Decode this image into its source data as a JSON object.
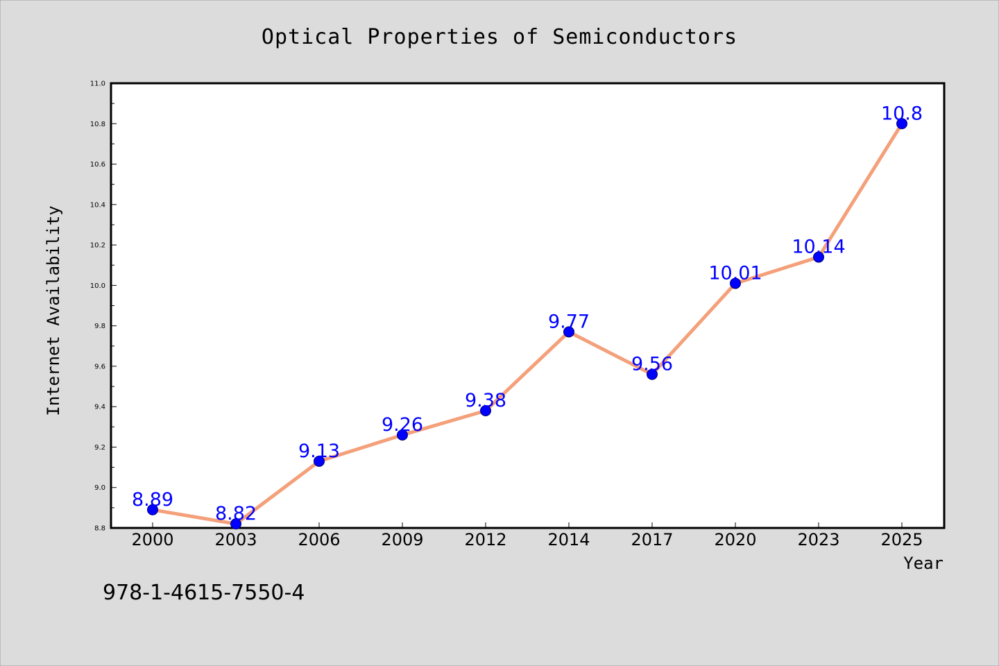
{
  "chart_data": {
    "type": "line",
    "title": "Optical Properties of Semiconductors",
    "xlabel": "Year",
    "ylabel": "Internet Availability",
    "categories": [
      "2000",
      "2003",
      "2006",
      "2009",
      "2012",
      "2014",
      "2017",
      "2020",
      "2023",
      "2025"
    ],
    "series": [
      {
        "values": [
          8.89,
          8.82,
          9.13,
          9.26,
          9.38,
          9.77,
          9.56,
          10.01,
          10.14,
          10.8
        ],
        "labels": [
          "8.89",
          "8.82",
          "9.13",
          "9.26",
          "9.38",
          "9.77",
          "9.56",
          "10.01",
          "10.14",
          "10.8"
        ]
      }
    ],
    "ylim": [
      8.8,
      11.0
    ],
    "yticks": [
      "8.8",
      "9.0",
      "9.2",
      "9.4",
      "9.6",
      "9.8",
      "10.0",
      "10.2",
      "10.4",
      "10.6",
      "10.8",
      "11.0"
    ],
    "grid": false,
    "legend": "none"
  },
  "annotation": "978-1-4615-7550-4",
  "colors": {
    "background": "#dcdcdc",
    "plot_area": "#ffffff",
    "line": "#f4a07a",
    "marker": "#0000ff",
    "data_label": "#0000ff"
  }
}
